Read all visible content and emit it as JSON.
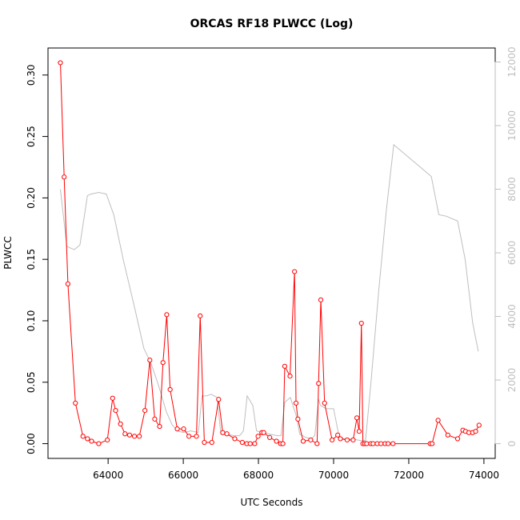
{
  "chart_data": {
    "type": "line",
    "title": "ORCAS RF18 PLWCC (Log)",
    "xlabel": "UTC Seconds",
    "ylabel": "PLWCC",
    "xlim": [
      62400,
      74300
    ],
    "ylim": [
      -0.012,
      0.322
    ],
    "y2lim": [
      -464,
      12440
    ],
    "xticks": [
      64000,
      66000,
      68000,
      70000,
      72000,
      74000
    ],
    "xtick_labels": [
      "64000",
      "66000",
      "68000",
      "70000",
      "72000",
      "74000"
    ],
    "yticks": [
      0.0,
      0.05,
      0.1,
      0.15,
      0.2,
      0.25,
      0.3
    ],
    "ytick_labels": [
      "0.00",
      "0.05",
      "0.10",
      "0.15",
      "0.20",
      "0.25",
      "0.30"
    ],
    "y2ticks": [
      0,
      2000,
      4000,
      6000,
      8000,
      10000,
      12000
    ],
    "y2tick_labels": [
      "0",
      "2000",
      "4000",
      "6000",
      "8000",
      "10000",
      "12000"
    ],
    "colors": {
      "primary": "#ff0000",
      "secondary": "#bebebe",
      "axis": "#000000"
    },
    "series": [
      {
        "axis": "left",
        "marker": "open-circle",
        "x": [
          62730,
          62830,
          62930,
          63130,
          63330,
          63450,
          63560,
          63750,
          63980,
          64120,
          64200,
          64330,
          64450,
          64570,
          64700,
          64830,
          64980,
          65110,
          65240,
          65370,
          65460,
          65560,
          65650,
          65840,
          66010,
          66150,
          66350,
          66450,
          66560,
          66760,
          66940,
          67050,
          67160,
          67370,
          67570,
          67690,
          67780,
          67900,
          67990,
          68090,
          68140,
          68300,
          68480,
          68590,
          68650,
          68700,
          68840,
          68960,
          69000,
          69050,
          69190,
          69390,
          69560,
          69600,
          69660,
          69760,
          69960,
          70110,
          70180,
          70360,
          70520,
          70620,
          70680,
          70740,
          70780,
          70830,
          70880,
          70990,
          71050,
          71160,
          71260,
          71370,
          71450,
          71580,
          72570,
          72620,
          72780,
          73040,
          73300,
          73440,
          73510,
          73600,
          73700,
          73780,
          73870
        ],
        "y": [
          0.31,
          0.217,
          0.13,
          0.033,
          0.006,
          0.004,
          0.002,
          0.0,
          0.003,
          0.037,
          0.027,
          0.016,
          0.008,
          0.007,
          0.006,
          0.006,
          0.027,
          0.068,
          0.02,
          0.014,
          0.066,
          0.105,
          0.044,
          0.012,
          0.012,
          0.006,
          0.006,
          0.104,
          0.001,
          0.001,
          0.036,
          0.009,
          0.008,
          0.004,
          0.001,
          0.0,
          0.0,
          0.0,
          0.006,
          0.009,
          0.009,
          0.005,
          0.002,
          0.0,
          0.0,
          0.063,
          0.055,
          0.14,
          0.033,
          0.02,
          0.002,
          0.003,
          0.0,
          0.049,
          0.117,
          0.033,
          0.003,
          0.007,
          0.004,
          0.003,
          0.003,
          0.021,
          0.01,
          0.098,
          0.0,
          0.0,
          0.0,
          0.0,
          0.0,
          0.0,
          0.0,
          0.0,
          0.0,
          0.0,
          0.0,
          0.0,
          0.019,
          0.007,
          0.004,
          0.011,
          0.01,
          0.009,
          0.009,
          0.01,
          0.015
        ]
      },
      {
        "axis": "right",
        "marker": "none",
        "x": [
          62730,
          62900,
          63100,
          63250,
          63450,
          63550,
          63750,
          63950,
          64150,
          64400,
          64700,
          64950,
          65150,
          65350,
          65550,
          65700,
          65850,
          66000,
          66200,
          66400,
          66500,
          66600,
          66750,
          66900,
          67000,
          67150,
          67350,
          67500,
          67600,
          67700,
          67750,
          67850,
          67950,
          68100,
          68300,
          68500,
          68600,
          68700,
          68850,
          69000,
          69100,
          69250,
          69400,
          69500,
          69600,
          69650,
          69800,
          70000,
          70150,
          70300,
          70500,
          70700,
          70850,
          71000,
          71200,
          71400,
          71600,
          72000,
          72300,
          72600,
          72700,
          72800,
          73000,
          73300,
          73500,
          73700,
          73850
        ],
        "y": [
          8000,
          6200,
          6100,
          6250,
          7800,
          7850,
          7900,
          7850,
          7200,
          5800,
          4300,
          3000,
          2500,
          1800,
          1000,
          600,
          400,
          350,
          400,
          350,
          1500,
          1500,
          1550,
          1450,
          300,
          300,
          250,
          250,
          400,
          1500,
          1400,
          1200,
          400,
          350,
          300,
          250,
          250,
          1300,
          1450,
          900,
          300,
          200,
          150,
          250,
          1400,
          1200,
          1100,
          1100,
          200,
          150,
          150,
          100,
          100,
          2000,
          4800,
          7300,
          9400,
          9000,
          8700,
          8400,
          7800,
          7200,
          7150,
          7000,
          5800,
          3800,
          2900
        ]
      }
    ]
  }
}
